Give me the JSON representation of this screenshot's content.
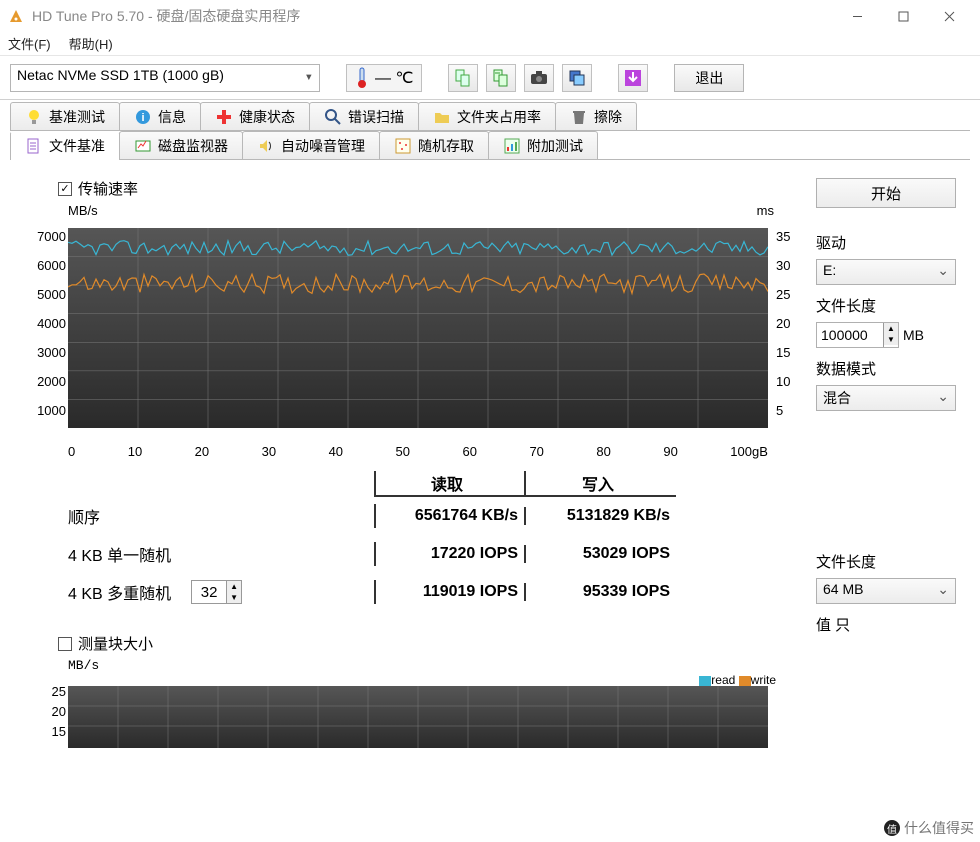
{
  "window": {
    "title": "HD Tune Pro 5.70 - 硬盘/固态硬盘实用程序"
  },
  "menubar": {
    "file": "文件(F)",
    "help": "帮助(H)"
  },
  "toolbar": {
    "disk_selected": "Netac NVMe SSD 1TB (1000 gB)",
    "temp_value": "— ℃",
    "exit_label": "退出"
  },
  "tabs_row1": [
    {
      "label": "基准测试",
      "icon": "bulb"
    },
    {
      "label": "信息",
      "icon": "info"
    },
    {
      "label": "健康状态",
      "icon": "plus"
    },
    {
      "label": "错误扫描",
      "icon": "magnify"
    },
    {
      "label": "文件夹占用率",
      "icon": "folder"
    },
    {
      "label": "擦除",
      "icon": "trash"
    }
  ],
  "tabs_row2": [
    {
      "label": "文件基准",
      "icon": "filebench",
      "active": true
    },
    {
      "label": "磁盘监视器",
      "icon": "monitor"
    },
    {
      "label": "自动噪音管理",
      "icon": "speaker"
    },
    {
      "label": "随机存取",
      "icon": "random"
    },
    {
      "label": "附加测试",
      "icon": "extra"
    }
  ],
  "filebench": {
    "transfer_checkbox_label": "传输速率",
    "chart": {
      "type": "line",
      "y_left_unit": "MB/s",
      "y_right_unit": "ms",
      "x_unit": "gB",
      "y_left_ticks": [
        7000,
        6000,
        5000,
        4000,
        3000,
        2000,
        1000
      ],
      "y_right_ticks": [
        35,
        30,
        25,
        20,
        15,
        10,
        5
      ],
      "x_ticks": [
        0,
        10,
        20,
        30,
        40,
        50,
        60,
        70,
        80,
        90,
        100
      ],
      "y_left_max": 7000,
      "background_color": "#454545",
      "grid_color": "#7a7a7a",
      "series": [
        {
          "name": "read",
          "color": "#39b6d4",
          "baseline": 6300,
          "jitter": 260
        },
        {
          "name": "write",
          "color": "#e08a2a",
          "baseline": 5050,
          "jitter": 340
        }
      ]
    },
    "results": {
      "headers": {
        "read": "读取",
        "write": "写入"
      },
      "rows": [
        {
          "label": "顺序",
          "read_val": "6561764",
          "read_unit": "KB/s",
          "write_val": "5131829",
          "write_unit": "KB/s"
        },
        {
          "label": "4 KB 单一随机",
          "read_val": "17220",
          "read_unit": "IOPS",
          "write_val": "53029",
          "write_unit": "IOPS"
        },
        {
          "label": "4 KB 多重随机",
          "read_val": "119019",
          "read_unit": "IOPS",
          "write_val": "95339",
          "write_unit": "IOPS",
          "has_spin": true,
          "spin_value": 32
        }
      ]
    },
    "blocksize_checkbox_label": "测量块大小",
    "chart2": {
      "type": "line",
      "y_left_unit": "MB/s",
      "y_left_ticks": [
        25,
        20,
        15
      ],
      "legend": [
        {
          "label": "read",
          "color": "#39b6d4"
        },
        {
          "label": "write",
          "color": "#e08a2a"
        }
      ],
      "grid_color": "#7a7a7a"
    }
  },
  "sidebar": {
    "start_label": "开始",
    "drive_label": "驱动",
    "drive_value": "E:",
    "filelen_label": "文件长度",
    "filelen_value": "100000",
    "filelen_unit": "MB",
    "datamode_label": "数据模式",
    "datamode_value": "混合",
    "filelen2_label": "文件长度",
    "filelen2_value": "64 MB",
    "value_partial_label": "值 只"
  },
  "watermark": "什么值得买"
}
